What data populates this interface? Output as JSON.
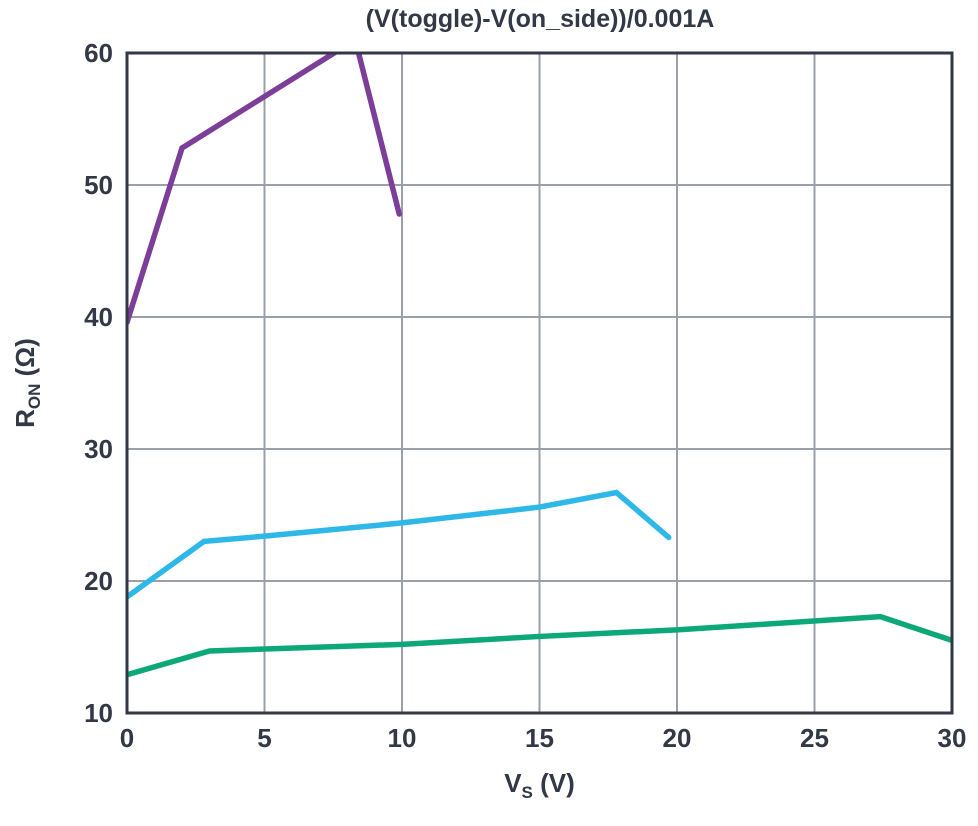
{
  "title": "(V(toggle)-V(on_side))/0.001A",
  "colors": {
    "axis_and_text": "#323845",
    "grid": "#9aa0a9",
    "background": "#ffffff",
    "purple_trace": "#7c3e99",
    "cyan_trace": "#2db8e8",
    "green_trace": "#0da87a"
  },
  "chart_data": {
    "type": "line",
    "title": "(V(toggle)-V(on_side))/0.001A",
    "xlabel": "V_S (V)",
    "ylabel": "R_ON (Ω)",
    "xlabel_parts": {
      "base": "V",
      "sub": "S",
      "unit": " (V)"
    },
    "ylabel_parts": {
      "base": "R",
      "sub": "ON",
      "unit": " (Ω)"
    },
    "xlim": [
      0,
      30
    ],
    "ylim": [
      10,
      60
    ],
    "xticks": [
      0,
      5,
      10,
      15,
      20,
      25,
      30
    ],
    "yticks": [
      10,
      20,
      30,
      40,
      50,
      60
    ],
    "grid": true,
    "legend": "none",
    "clip_to_axes": true,
    "series": [
      {
        "name": "purple-trace",
        "color": "#7c3e99",
        "note": "peak exceeds y-axis max and is clipped at 60",
        "points": [
          [
            0,
            39.6
          ],
          [
            2,
            52.8
          ],
          [
            8.3,
            61.0
          ],
          [
            9.9,
            47.8
          ]
        ]
      },
      {
        "name": "cyan-trace",
        "color": "#2db8e8",
        "points": [
          [
            0,
            18.8
          ],
          [
            2.8,
            23.0
          ],
          [
            5,
            23.4
          ],
          [
            10,
            24.4
          ],
          [
            15,
            25.6
          ],
          [
            17.8,
            26.7
          ],
          [
            19.7,
            23.3
          ]
        ]
      },
      {
        "name": "green-trace",
        "color": "#0da87a",
        "points": [
          [
            0,
            12.9
          ],
          [
            3,
            14.7
          ],
          [
            10,
            15.2
          ],
          [
            15,
            15.8
          ],
          [
            20,
            16.3
          ],
          [
            27.4,
            17.3
          ],
          [
            30,
            15.5
          ]
        ]
      }
    ]
  }
}
